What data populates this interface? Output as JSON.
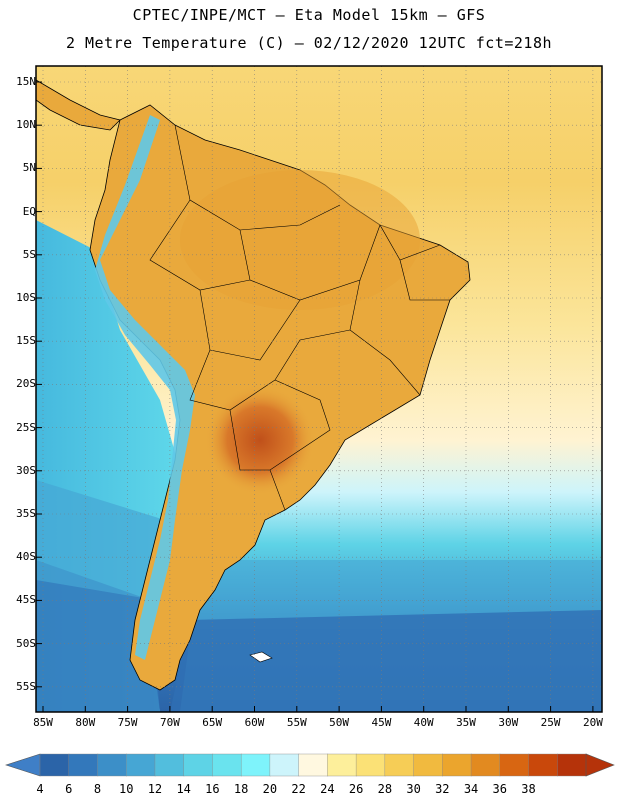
{
  "header": {
    "line1": "CPTEC/INPE/MCT –  Eta Model 15km – GFS",
    "line2": "2 Metre Temperature (C) – 02/12/2020 12UTC fct=218h"
  },
  "map": {
    "lat_labels": [
      "15N",
      "10N",
      "5N",
      "EQ",
      "5S",
      "10S",
      "15S",
      "20S",
      "25S",
      "30S",
      "35S",
      "40S",
      "45S",
      "50S",
      "55S"
    ],
    "lon_labels": [
      "85W",
      "80W",
      "75W",
      "70W",
      "65W",
      "60W",
      "55W",
      "50W",
      "45W",
      "40W",
      "35W",
      "30W",
      "25W",
      "20W"
    ],
    "colors": {
      "ocean_cold": "#2f6fb4",
      "ocean_mid": "#3fa8d6",
      "ocean_cool": "#5fd0e4",
      "ocean_warm": "#fde98a",
      "land_warm": "#e9a93c",
      "land_hot": "#c0561c",
      "andes_cold": "#5fc8e8"
    }
  },
  "colorbar": {
    "labels": [
      "4",
      "6",
      "8",
      "10",
      "12",
      "14",
      "16",
      "18",
      "20",
      "22",
      "24",
      "26",
      "28",
      "30",
      "32",
      "34",
      "36",
      "38"
    ],
    "colors": [
      "#2b64a8",
      "#3378bb",
      "#3c8fc8",
      "#46a6d4",
      "#52bedd",
      "#5ed3e6",
      "#6ae3ee",
      "#7ef3fb",
      "#cdf4fb",
      "#fff8e0",
      "#fdef9b",
      "#fbe176",
      "#f6cd56",
      "#f1ba3f",
      "#eba52d",
      "#e28a20",
      "#d86612",
      "#c9480b",
      "#b5330a"
    ],
    "arrow_left_color": "#3f7fc7",
    "arrow_right_color": "#b5330a"
  }
}
